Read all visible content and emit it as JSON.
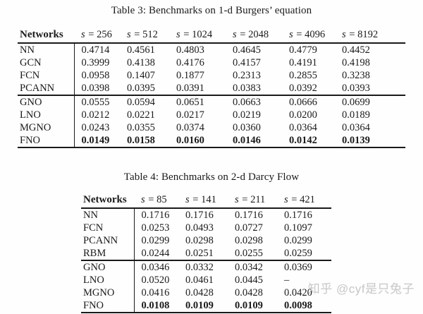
{
  "watermark": "知乎 @cyf是只兔子",
  "tables": [
    {
      "title": "Table 3: Benchmarks on 1-d Burgers’ equation",
      "header": {
        "label": "Networks",
        "cols": [
          {
            "symbol": "s",
            "rest": "= 256"
          },
          {
            "symbol": "s",
            "rest": "= 512"
          },
          {
            "symbol": "s",
            "rest": "= 1024"
          },
          {
            "symbol": "s",
            "rest": "= 2048"
          },
          {
            "symbol": "s",
            "rest": "= 4096"
          },
          {
            "symbol": "s",
            "rest": "= 8192"
          }
        ]
      },
      "groups": [
        {
          "rows": [
            {
              "name": "NN",
              "values": [
                "0.4714",
                "0.4561",
                "0.4803",
                "0.4645",
                "0.4779",
                "0.4452"
              ]
            },
            {
              "name": "GCN",
              "values": [
                "0.3999",
                "0.4138",
                "0.4176",
                "0.4157",
                "0.4191",
                "0.4198"
              ]
            },
            {
              "name": "FCN",
              "values": [
                "0.0958",
                "0.1407",
                "0.1877",
                "0.2313",
                "0.2855",
                "0.3238"
              ]
            },
            {
              "name": "PCANN",
              "values": [
                "0.0398",
                "0.0395",
                "0.0391",
                "0.0383",
                "0.0392",
                "0.0393"
              ]
            }
          ]
        },
        {
          "rows": [
            {
              "name": "GNO",
              "values": [
                "0.0555",
                "0.0594",
                "0.0651",
                "0.0663",
                "0.0666",
                "0.0699"
              ]
            },
            {
              "name": "LNO",
              "values": [
                "0.0212",
                "0.0221",
                "0.0217",
                "0.0219",
                "0.0200",
                "0.0189"
              ]
            },
            {
              "name": "MGNO",
              "values": [
                "0.0243",
                "0.0355",
                "0.0374",
                "0.0360",
                "0.0364",
                "0.0364"
              ]
            },
            {
              "name": "FNO",
              "values": [
                "0.0149",
                "0.0158",
                "0.0160",
                "0.0146",
                "0.0142",
                "0.0139"
              ],
              "bold_values": true
            }
          ]
        }
      ]
    },
    {
      "title": "Table 4: Benchmarks on 2-d Darcy Flow",
      "header": {
        "label": "Networks",
        "cols": [
          {
            "symbol": "s",
            "rest": "= 85"
          },
          {
            "symbol": "s",
            "rest": "= 141"
          },
          {
            "symbol": "s",
            "rest": "= 211"
          },
          {
            "symbol": "s",
            "rest": "= 421"
          }
        ]
      },
      "groups": [
        {
          "rows": [
            {
              "name": "NN",
              "values": [
                "0.1716",
                "0.1716",
                "0.1716",
                "0.1716"
              ]
            },
            {
              "name": "FCN",
              "values": [
                "0.0253",
                "0.0493",
                "0.0727",
                "0.1097"
              ]
            },
            {
              "name": "PCANN",
              "values": [
                "0.0299",
                "0.0298",
                "0.0298",
                "0.0299"
              ]
            },
            {
              "name": "RBM",
              "values": [
                "0.0244",
                "0.0251",
                "0.0255",
                "0.0259"
              ]
            }
          ]
        },
        {
          "rows": [
            {
              "name": "GNO",
              "values": [
                "0.0346",
                "0.0332",
                "0.0342",
                "0.0369"
              ]
            },
            {
              "name": "LNO",
              "values": [
                "0.0520",
                "0.0461",
                "0.0445",
                "–"
              ]
            },
            {
              "name": "MGNO",
              "values": [
                "0.0416",
                "0.0428",
                "0.0428",
                "0.0420"
              ]
            },
            {
              "name": "FNO",
              "values": [
                "0.0108",
                "0.0109",
                "0.0109",
                "0.0098"
              ],
              "bold_values": true
            }
          ]
        }
      ]
    }
  ]
}
